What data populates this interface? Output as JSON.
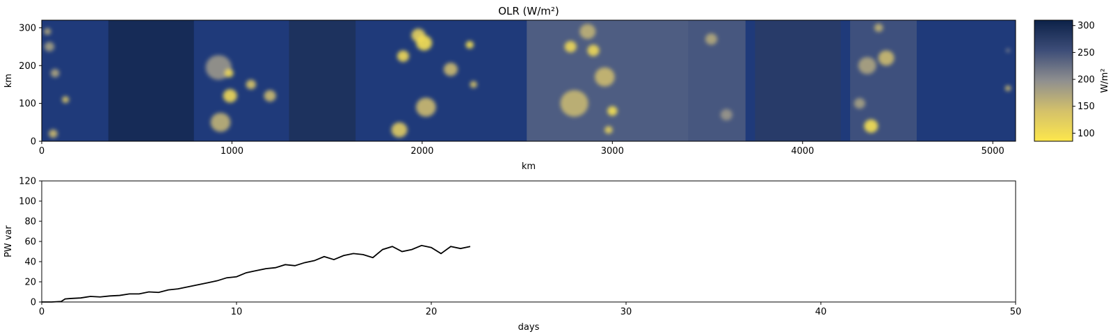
{
  "chart_data": [
    {
      "type": "heatmap",
      "title": "OLR (W/m²)",
      "xlabel": "km",
      "ylabel": "km",
      "xlim": [
        0,
        5120
      ],
      "ylim": [
        0,
        320
      ],
      "xticks": [
        "0",
        "1000",
        "2000",
        "3000",
        "4000",
        "5000"
      ],
      "yticks": [
        "0",
        "100",
        "200",
        "300"
      ],
      "colormap": "cividis",
      "colorbar": {
        "label": "W/m²",
        "range": [
          85,
          310
        ],
        "ticks": [
          "100",
          "150",
          "200",
          "250",
          "300"
        ],
        "low_color": "#fde74c",
        "high_color": "#0c2148"
      },
      "cells": [
        {
          "x": 30,
          "y": 290,
          "r": 18,
          "v": 170
        },
        {
          "x": 40,
          "y": 250,
          "r": 25,
          "v": 180
        },
        {
          "x": 70,
          "y": 180,
          "r": 22,
          "v": 175
        },
        {
          "x": 60,
          "y": 20,
          "r": 22,
          "v": 150
        },
        {
          "x": 125,
          "y": 110,
          "r": 18,
          "v": 140
        },
        {
          "x": 930,
          "y": 195,
          "r": 65,
          "v": 190
        },
        {
          "x": 985,
          "y": 180,
          "r": 22,
          "v": 110
        },
        {
          "x": 990,
          "y": 120,
          "r": 35,
          "v": 110
        },
        {
          "x": 940,
          "y": 50,
          "r": 50,
          "v": 160
        },
        {
          "x": 1100,
          "y": 150,
          "r": 25,
          "v": 140
        },
        {
          "x": 1200,
          "y": 120,
          "r": 30,
          "v": 150
        },
        {
          "x": 1880,
          "y": 30,
          "r": 40,
          "v": 130
        },
        {
          "x": 1900,
          "y": 225,
          "r": 30,
          "v": 110
        },
        {
          "x": 1980,
          "y": 280,
          "r": 35,
          "v": 120
        },
        {
          "x": 2010,
          "y": 260,
          "r": 40,
          "v": 100
        },
        {
          "x": 2020,
          "y": 90,
          "r": 50,
          "v": 150
        },
        {
          "x": 2150,
          "y": 190,
          "r": 35,
          "v": 150
        },
        {
          "x": 2250,
          "y": 255,
          "r": 20,
          "v": 100
        },
        {
          "x": 2270,
          "y": 150,
          "r": 18,
          "v": 140
        },
        {
          "x": 2800,
          "y": 100,
          "r": 70,
          "v": 155
        },
        {
          "x": 2780,
          "y": 250,
          "r": 30,
          "v": 110
        },
        {
          "x": 2870,
          "y": 290,
          "r": 40,
          "v": 160
        },
        {
          "x": 2900,
          "y": 240,
          "r": 30,
          "v": 110
        },
        {
          "x": 2960,
          "y": 170,
          "r": 50,
          "v": 150
        },
        {
          "x": 3000,
          "y": 80,
          "r": 25,
          "v": 100
        },
        {
          "x": 2980,
          "y": 30,
          "r": 20,
          "v": 120
        },
        {
          "x": 3520,
          "y": 270,
          "r": 30,
          "v": 170
        },
        {
          "x": 3600,
          "y": 70,
          "r": 30,
          "v": 190
        },
        {
          "x": 4360,
          "y": 40,
          "r": 35,
          "v": 100
        },
        {
          "x": 4340,
          "y": 200,
          "r": 45,
          "v": 175
        },
        {
          "x": 4440,
          "y": 220,
          "r": 40,
          "v": 150
        },
        {
          "x": 4300,
          "y": 100,
          "r": 28,
          "v": 180
        },
        {
          "x": 4400,
          "y": 300,
          "r": 22,
          "v": 160
        },
        {
          "x": 5080,
          "y": 140,
          "r": 15,
          "v": 150
        },
        {
          "x": 5080,
          "y": 240,
          "r": 10,
          "v": 200
        }
      ]
    },
    {
      "type": "line",
      "xlabel": "days",
      "ylabel": "PW var",
      "xlim": [
        0,
        50
      ],
      "ylim": [
        0,
        120
      ],
      "xticks": [
        "0",
        "10",
        "20",
        "30",
        "40",
        "50"
      ],
      "yticks": [
        "0",
        "20",
        "40",
        "60",
        "80",
        "100",
        "120"
      ],
      "series": [
        {
          "color": "#000000",
          "x": [
            0,
            0.5,
            1.0,
            1.2,
            1.5,
            2.0,
            2.5,
            3.0,
            3.5,
            4.0,
            4.5,
            5.0,
            5.5,
            6.0,
            6.5,
            7.0,
            7.5,
            8.0,
            8.5,
            9.0,
            9.5,
            10.0,
            10.5,
            11.0,
            11.5,
            12.0,
            12.5,
            13.0,
            13.5,
            14.0,
            14.5,
            15.0,
            15.5,
            16.0,
            16.5,
            17.0,
            17.5,
            18.0,
            18.5,
            19.0,
            19.5,
            20.0,
            20.5,
            21.0,
            21.5,
            22.0
          ],
          "y": [
            0,
            0,
            0.5,
            3,
            3.5,
            4,
            5.5,
            5,
            6,
            6.5,
            8,
            8,
            10,
            9.5,
            12,
            13,
            15,
            17,
            19,
            21,
            24,
            25,
            29,
            31,
            33,
            34,
            37,
            36,
            39,
            41,
            45,
            42,
            46,
            48,
            47,
            44,
            52,
            55,
            50,
            52,
            56,
            54,
            48,
            55,
            53,
            55
          ]
        }
      ]
    }
  ]
}
